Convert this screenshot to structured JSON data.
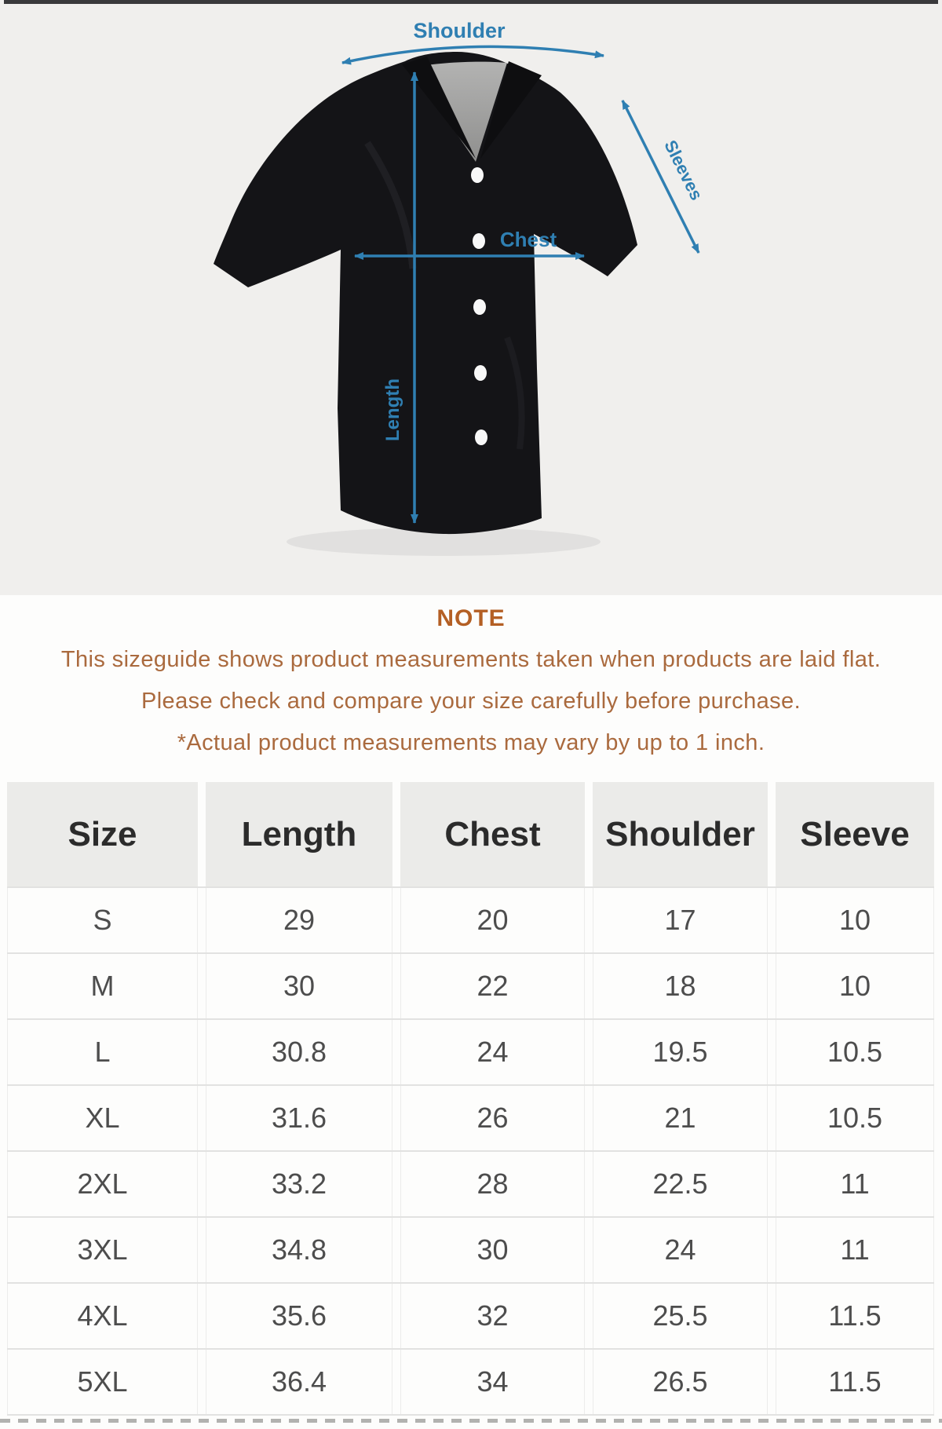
{
  "colors": {
    "annotation_blue": "#2f7fb2",
    "note_title": "#b45f24",
    "note_text": "#aa6a3e",
    "section_bg": "#f0efed"
  },
  "diagram": {
    "shoulder_label": "Shoulder",
    "sleeves_label": "Sleeves",
    "chest_label": "Chest",
    "length_label": "Length"
  },
  "note": {
    "title": "NOTE",
    "lines": [
      "This sizeguide shows product measurements taken when products are laid flat.",
      "Please check and compare your size carefully before purchase.",
      "*Actual product measurements may vary by up to 1 inch."
    ]
  },
  "chart_data": {
    "type": "table",
    "title": "Shirt size guide",
    "columns": [
      "Size",
      "Length",
      "Chest",
      "Shoulder",
      "Sleeve"
    ],
    "rows": [
      [
        "S",
        "29",
        "20",
        "17",
        "10"
      ],
      [
        "M",
        "30",
        "22",
        "18",
        "10"
      ],
      [
        "L",
        "30.8",
        "24",
        "19.5",
        "10.5"
      ],
      [
        "XL",
        "31.6",
        "26",
        "21",
        "10.5"
      ],
      [
        "2XL",
        "33.2",
        "28",
        "22.5",
        "11"
      ],
      [
        "3XL",
        "34.8",
        "30",
        "24",
        "11"
      ],
      [
        "4XL",
        "35.6",
        "32",
        "25.5",
        "11.5"
      ],
      [
        "5XL",
        "36.4",
        "34",
        "26.5",
        "11.5"
      ]
    ]
  }
}
